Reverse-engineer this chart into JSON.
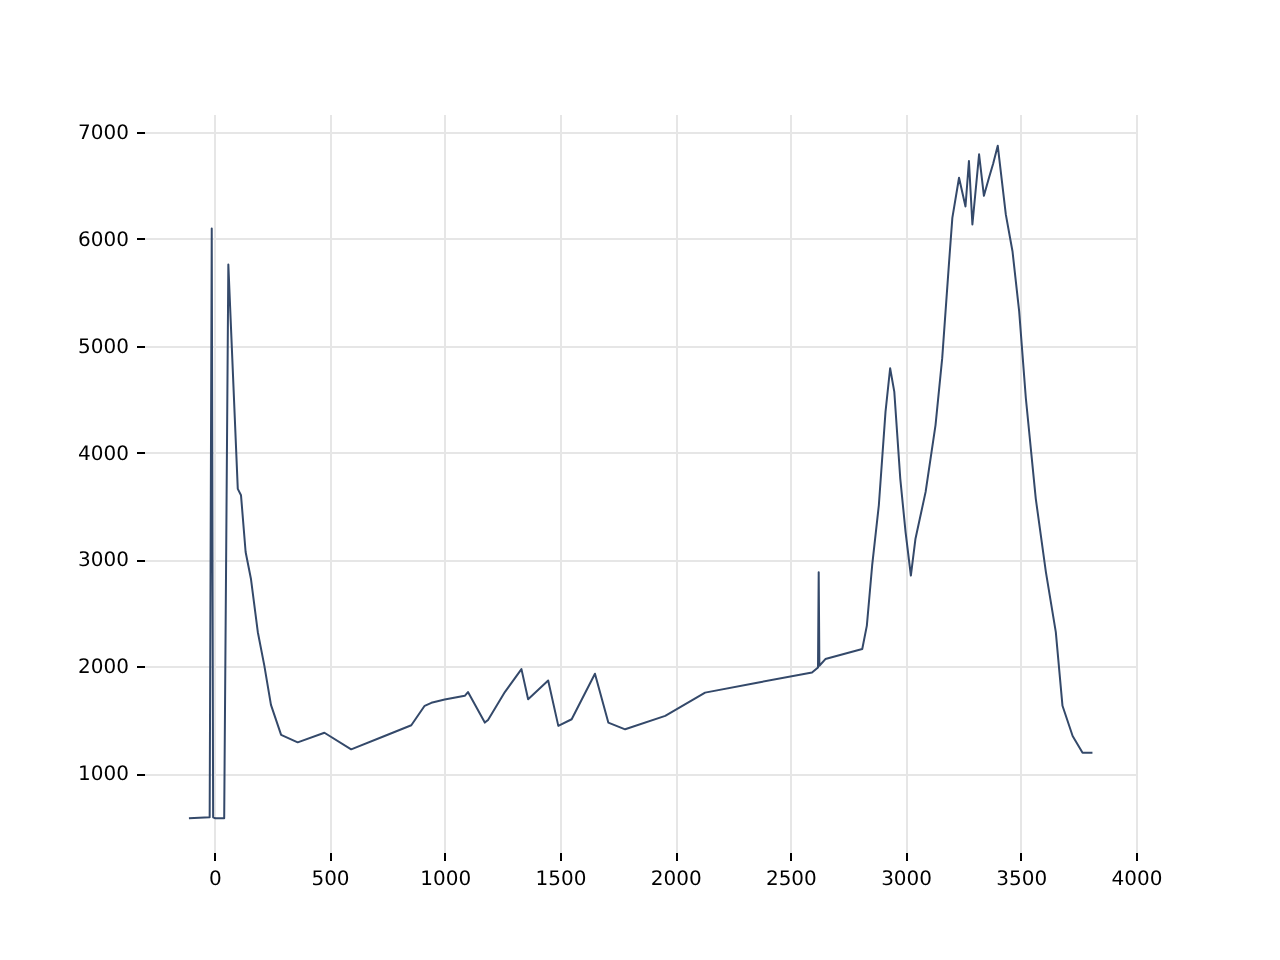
{
  "chart_data": {
    "type": "line",
    "xlim": [
      -305,
      4000
    ],
    "ylim": [
      265,
      7165
    ],
    "xticks": [
      0,
      500,
      1000,
      1500,
      2000,
      2500,
      3000,
      3500,
      4000
    ],
    "yticks": [
      1000,
      2000,
      3000,
      4000,
      5000,
      6000,
      7000
    ],
    "grid": true,
    "line_style": "solid",
    "marker": "none",
    "series": [
      {
        "color": "#34496a",
        "x": [
          -110,
          -20,
          -11,
          -5,
          5,
          43,
          61,
          102,
          116,
          136,
          159,
          189,
          217,
          246,
          290,
          362,
          478,
          594,
          739,
          855,
          913,
          942,
          1000,
          1087,
          1101,
          1174,
          1188,
          1261,
          1333,
          1362,
          1449,
          1493,
          1551,
          1652,
          1710,
          1783,
          1957,
          2130,
          2362,
          2594,
          2620,
          2623,
          2626,
          2652,
          2812,
          2832,
          2855,
          2884,
          2913,
          2933,
          2951,
          2977,
          3000,
          3023,
          3043,
          3087,
          3130,
          3159,
          3188,
          3203,
          3232,
          3260,
          3275,
          3290,
          3319,
          3340,
          3362,
          3380,
          3400,
          3435,
          3464,
          3493,
          3522,
          3565,
          3609,
          3652,
          3681,
          3725,
          3768,
          3811
        ],
        "values": [
          580,
          590,
          6094,
          590,
          580,
          580,
          5757,
          3660,
          3600,
          3070,
          2820,
          2320,
          2010,
          1640,
          1360,
          1290,
          1380,
          1225,
          1350,
          1450,
          1632,
          1660,
          1690,
          1725,
          1760,
          1475,
          1500,
          1760,
          1975,
          1694,
          1868,
          1444,
          1506,
          1932,
          1475,
          1412,
          1538,
          1755,
          1850,
          1943,
          1990,
          2880,
          2006,
          2069,
          2163,
          2382,
          2944,
          3507,
          4382,
          4788,
          4570,
          3756,
          3256,
          2850,
          3194,
          3632,
          4257,
          4882,
          5757,
          6194,
          6569,
          6300,
          6725,
          6132,
          6788,
          6400,
          6569,
          6700,
          6869,
          6226,
          5882,
          5319,
          4507,
          3569,
          2882,
          2320,
          1632,
          1350,
          1193,
          1193
        ]
      }
    ]
  }
}
